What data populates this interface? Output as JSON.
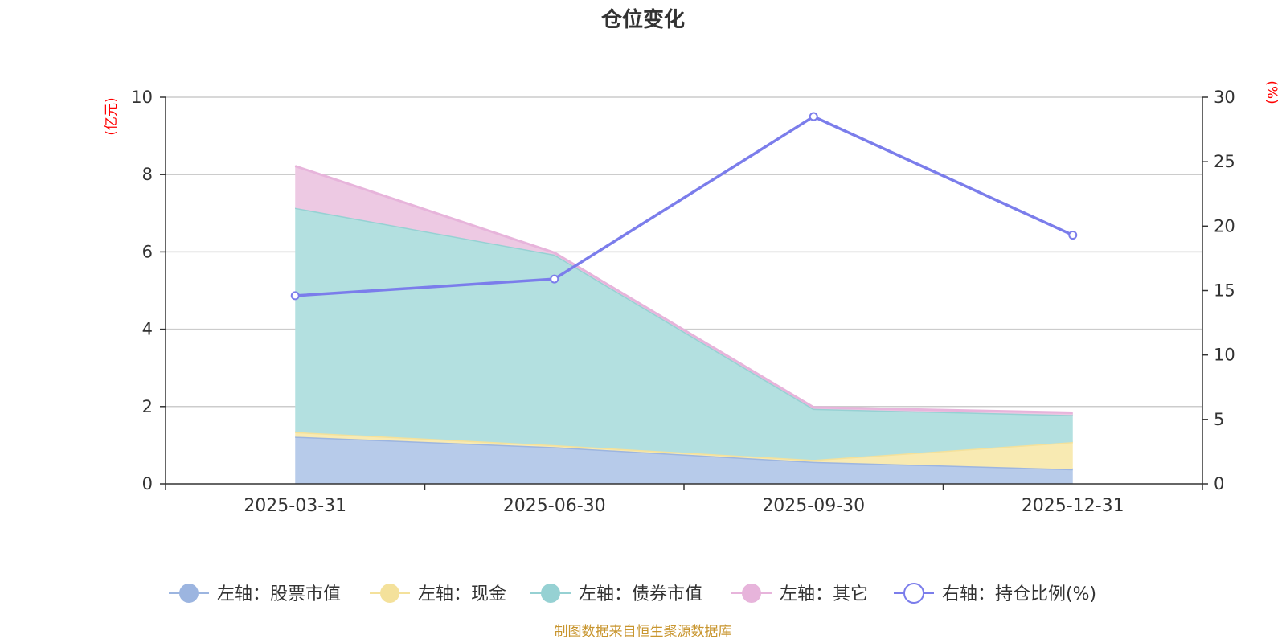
{
  "chart_data": {
    "type": "area",
    "title": "仓位变化",
    "categories": [
      "2025-03-31",
      "2025-06-30",
      "2025-09-30",
      "2025-12-31"
    ],
    "left_axis": {
      "unit": "(亿元)",
      "ylim": [
        0,
        10
      ],
      "ticks": [
        "0",
        "2",
        "4",
        "6",
        "8",
        "10"
      ]
    },
    "right_axis": {
      "unit": "(%)",
      "ylim": [
        0,
        30
      ],
      "ticks": [
        "0",
        "5",
        "10",
        "15",
        "20",
        "25",
        "30"
      ]
    },
    "stacked_series": [
      {
        "name": "左轴：股票市值",
        "values": [
          1.22,
          0.95,
          0.57,
          0.38
        ],
        "fill": "#b7cbea",
        "line": "#9cb5e0"
      },
      {
        "name": "左轴：现金",
        "values": [
          0.12,
          0.05,
          0.05,
          0.7
        ],
        "fill": "#f8eab2",
        "line": "#f4e19b"
      },
      {
        "name": "左轴：债券市值",
        "values": [
          5.8,
          4.93,
          1.32,
          0.7
        ],
        "fill": "#b3e0e0",
        "line": "#96d1d3"
      },
      {
        "name": "左轴：其它",
        "values": [
          1.08,
          0.05,
          0.04,
          0.06
        ],
        "fill": "#edc9e3",
        "line": "#e7b4db"
      }
    ],
    "line_series": {
      "name": "右轴：持仓比例(%)",
      "values": [
        14.6,
        15.9,
        28.5,
        19.3
      ],
      "color": "#7b7deb"
    },
    "grid": true,
    "legend_position": "bottom"
  },
  "source_note": "制图数据来自恒生聚源数据库"
}
